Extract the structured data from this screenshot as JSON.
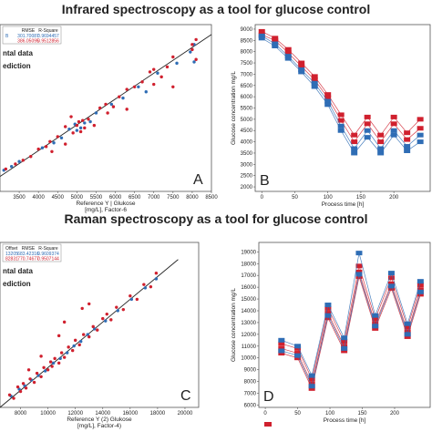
{
  "titles": {
    "top": "Infrared spectroscopy as a tool for glucose control",
    "bottom": "Raman spectroscopy as a tool for glucose control"
  },
  "colors": {
    "red": "#d0202e",
    "blue": "#2f6db5",
    "line": "#222222"
  },
  "chart_data": [
    {
      "id": "A",
      "type": "scatter",
      "panel_label": "A",
      "xlabel_lines": [
        "Reference Y | Glukose",
        "[mg/L], Factor-6"
      ],
      "ylabel": "",
      "xlim": [
        3000,
        8500
      ],
      "ylim": [
        2500,
        9200
      ],
      "xticks": [
        3500,
        4000,
        4500,
        5000,
        5500,
        6000,
        6500,
        7000,
        7500,
        8000,
        8500
      ],
      "yticks": [],
      "legend": [
        "ntal data",
        "ediction"
      ],
      "stats_header": [
        "",
        "RMSE",
        "R-Square"
      ],
      "stats_rows": [
        {
          "label": "B",
          "rmse": "301.70087",
          "r2": "0.9694457",
          "color": "blue"
        },
        {
          "label": "",
          "rmse": "386.05095",
          "r2": "0.9512856",
          "color": "red"
        }
      ],
      "fit_line": [
        [
          3000,
          3100
        ],
        [
          8500,
          8800
        ]
      ],
      "points_red": [
        [
          3150,
          3400
        ],
        [
          3400,
          3600
        ],
        [
          3600,
          3750
        ],
        [
          4000,
          4200
        ],
        [
          4200,
          4300
        ],
        [
          4350,
          4100
        ],
        [
          4500,
          4700
        ],
        [
          4700,
          4400
        ],
        [
          4700,
          5100
        ],
        [
          4900,
          4850
        ],
        [
          5000,
          5150
        ],
        [
          5050,
          5300
        ],
        [
          5100,
          4900
        ],
        [
          5150,
          5350
        ],
        [
          5200,
          5050
        ],
        [
          5300,
          5400
        ],
        [
          5450,
          5150
        ],
        [
          5600,
          5850
        ],
        [
          5800,
          5650
        ],
        [
          5950,
          5900
        ],
        [
          6100,
          6300
        ],
        [
          6300,
          5800
        ],
        [
          6300,
          6600
        ],
        [
          6500,
          6700
        ],
        [
          6700,
          6900
        ],
        [
          7000,
          7400
        ],
        [
          7000,
          6800
        ],
        [
          7200,
          7100
        ],
        [
          7350,
          7500
        ],
        [
          7500,
          7900
        ],
        [
          7500,
          6700
        ],
        [
          8000,
          8400
        ],
        [
          8000,
          8200
        ],
        [
          8100,
          7800
        ],
        [
          8100,
          8600
        ],
        [
          4850,
          5500
        ],
        [
          4300,
          4500
        ],
        [
          3800,
          3900
        ],
        [
          5750,
          6000
        ],
        [
          6900,
          7300
        ]
      ],
      "points_blue": [
        [
          3100,
          3350
        ],
        [
          3500,
          3700
        ],
        [
          4100,
          4250
        ],
        [
          4600,
          4650
        ],
        [
          4800,
          5000
        ],
        [
          4950,
          5200
        ],
        [
          5100,
          5050
        ],
        [
          5200,
          5250
        ],
        [
          5350,
          5300
        ],
        [
          5500,
          5650
        ],
        [
          5900,
          6000
        ],
        [
          6200,
          6250
        ],
        [
          6600,
          6700
        ],
        [
          6800,
          6500
        ],
        [
          7100,
          7250
        ],
        [
          7600,
          7650
        ],
        [
          7950,
          8100
        ],
        [
          8050,
          7700
        ],
        [
          8050,
          8400
        ],
        [
          5000,
          4950
        ],
        [
          4400,
          4450
        ],
        [
          3300,
          3500
        ]
      ]
    },
    {
      "id": "B",
      "type": "line",
      "panel_label": "B",
      "xlabel": "Process time [h]",
      "ylabel": "Glucose concentration mg/L",
      "xlim": [
        -10,
        255
      ],
      "ylim": [
        1800,
        9200
      ],
      "xticks": [
        0,
        50,
        100,
        150,
        200
      ],
      "yticks": [
        2000,
        2500,
        3000,
        3500,
        4000,
        4500,
        5000,
        5500,
        6000,
        6500,
        7000,
        7500,
        8000,
        8500,
        9000
      ],
      "x": [
        0,
        20,
        40,
        60,
        80,
        100,
        120,
        140,
        160,
        180,
        200,
        220,
        240
      ],
      "series": [
        {
          "color": "red",
          "values": [
            8900,
            8600,
            8100,
            7500,
            6900,
            6100,
            5200,
            4300,
            5100,
            4300,
            5100,
            4400,
            5000
          ]
        },
        {
          "color": "red",
          "values": [
            8750,
            8500,
            7950,
            7350,
            6750,
            5950,
            4950,
            4000,
            4800,
            4000,
            4800,
            4100,
            4600
          ]
        },
        {
          "color": "blue",
          "values": [
            8700,
            8350,
            7800,
            7200,
            6600,
            5800,
            4700,
            3700,
            4500,
            3700,
            4500,
            3800,
            4300
          ]
        },
        {
          "color": "blue",
          "values": [
            8600,
            8250,
            7700,
            7100,
            6450,
            5650,
            4500,
            3500,
            4200,
            3500,
            4300,
            3600,
            4000
          ]
        }
      ]
    },
    {
      "id": "C",
      "type": "scatter",
      "panel_label": "C",
      "xlabel_lines": [
        "Reference Y (2) Glukose",
        "[mg/L], Factor-4)"
      ],
      "ylabel": "",
      "xlim": [
        6500,
        21000
      ],
      "ylim": [
        6500,
        21000
      ],
      "xticks": [
        8000,
        10000,
        12000,
        14000,
        16000,
        18000,
        20000
      ],
      "yticks": [],
      "legend": [
        "ntal data",
        "ediction"
      ],
      "stats_header": [
        "Offset",
        "RMSE",
        "R-Square"
      ],
      "stats_rows": [
        {
          "label": "13205",
          "rmse": "683.42316",
          "r2": "0.9609374",
          "color": "blue"
        },
        {
          "label": "82831",
          "rmse": "770.74677",
          "r2": "0.9507144",
          "color": "red"
        }
      ],
      "fit_line": [
        [
          6500,
          6500
        ],
        [
          19500,
          19500
        ]
      ],
      "points_red": [
        [
          7200,
          7600
        ],
        [
          7500,
          7300
        ],
        [
          7800,
          8300
        ],
        [
          8000,
          7900
        ],
        [
          8200,
          8600
        ],
        [
          8400,
          8200
        ],
        [
          8700,
          9000
        ],
        [
          9000,
          8700
        ],
        [
          9200,
          9500
        ],
        [
          9500,
          9200
        ],
        [
          9700,
          10000
        ],
        [
          10000,
          9800
        ],
        [
          10200,
          10500
        ],
        [
          10300,
          10100
        ],
        [
          10500,
          10800
        ],
        [
          10800,
          10400
        ],
        [
          11000,
          11300
        ],
        [
          11200,
          10900
        ],
        [
          11500,
          11800
        ],
        [
          11800,
          11500
        ],
        [
          12000,
          12400
        ],
        [
          12300,
          12000
        ],
        [
          12600,
          12900
        ],
        [
          13000,
          12700
        ],
        [
          13300,
          13600
        ],
        [
          13600,
          13300
        ],
        [
          14000,
          14300
        ],
        [
          14300,
          14700
        ],
        [
          14600,
          14200
        ],
        [
          15000,
          15300
        ],
        [
          15500,
          15100
        ],
        [
          16000,
          16300
        ],
        [
          16500,
          16000
        ],
        [
          17000,
          17300
        ],
        [
          17500,
          17100
        ],
        [
          17900,
          18300
        ],
        [
          11200,
          14000
        ],
        [
          12500,
          15200
        ],
        [
          13000,
          15600
        ],
        [
          9500,
          11000
        ],
        [
          8600,
          9800
        ],
        [
          10800,
          12800
        ]
      ],
      "points_blue": [
        [
          7300,
          7500
        ],
        [
          7900,
          8100
        ],
        [
          8300,
          8400
        ],
        [
          8800,
          8900
        ],
        [
          9300,
          9300
        ],
        [
          9800,
          9700
        ],
        [
          10400,
          10400
        ],
        [
          10900,
          10800
        ],
        [
          11400,
          11300
        ],
        [
          11900,
          11900
        ],
        [
          12400,
          12300
        ],
        [
          12900,
          12900
        ],
        [
          13400,
          13400
        ],
        [
          14200,
          14100
        ],
        [
          15100,
          15000
        ],
        [
          16100,
          16000
        ],
        [
          17100,
          17000
        ],
        [
          17900,
          17800
        ]
      ]
    },
    {
      "id": "D",
      "type": "line",
      "panel_label": "D",
      "xlabel": "Process time [h]",
      "ylabel": "Glucose concentration mg/L",
      "xlim": [
        -10,
        255
      ],
      "ylim": [
        5800,
        19800
      ],
      "xticks": [
        0,
        50,
        100,
        150,
        200
      ],
      "yticks": [
        6000,
        7000,
        8000,
        9000,
        10000,
        11000,
        12000,
        13000,
        14000,
        15000,
        16000,
        17000,
        18000,
        19000
      ],
      "x": [
        25,
        50,
        72,
        97,
        122,
        145,
        170,
        195,
        220,
        240
      ],
      "series": [
        {
          "color": "red",
          "values": [
            11200,
            10800,
            8200,
            14200,
            11400,
            17800,
            13300,
            16800,
            12600,
            16200
          ]
        },
        {
          "color": "red",
          "values": [
            10800,
            10400,
            7800,
            13800,
            11000,
            17300,
            12900,
            16300,
            12200,
            15800
          ]
        },
        {
          "color": "red",
          "values": [
            10400,
            10000,
            7400,
            13400,
            10600,
            16900,
            12500,
            15900,
            11800,
            15400
          ]
        },
        {
          "color": "blue",
          "values": [
            11500,
            11000,
            8500,
            14500,
            11700,
            18900,
            13600,
            17200,
            12900,
            16500
          ]
        },
        {
          "color": "blue",
          "values": [
            10600,
            10200,
            7600,
            13600,
            10800,
            17100,
            12700,
            16100,
            12000,
            15600
          ]
        }
      ]
    }
  ]
}
